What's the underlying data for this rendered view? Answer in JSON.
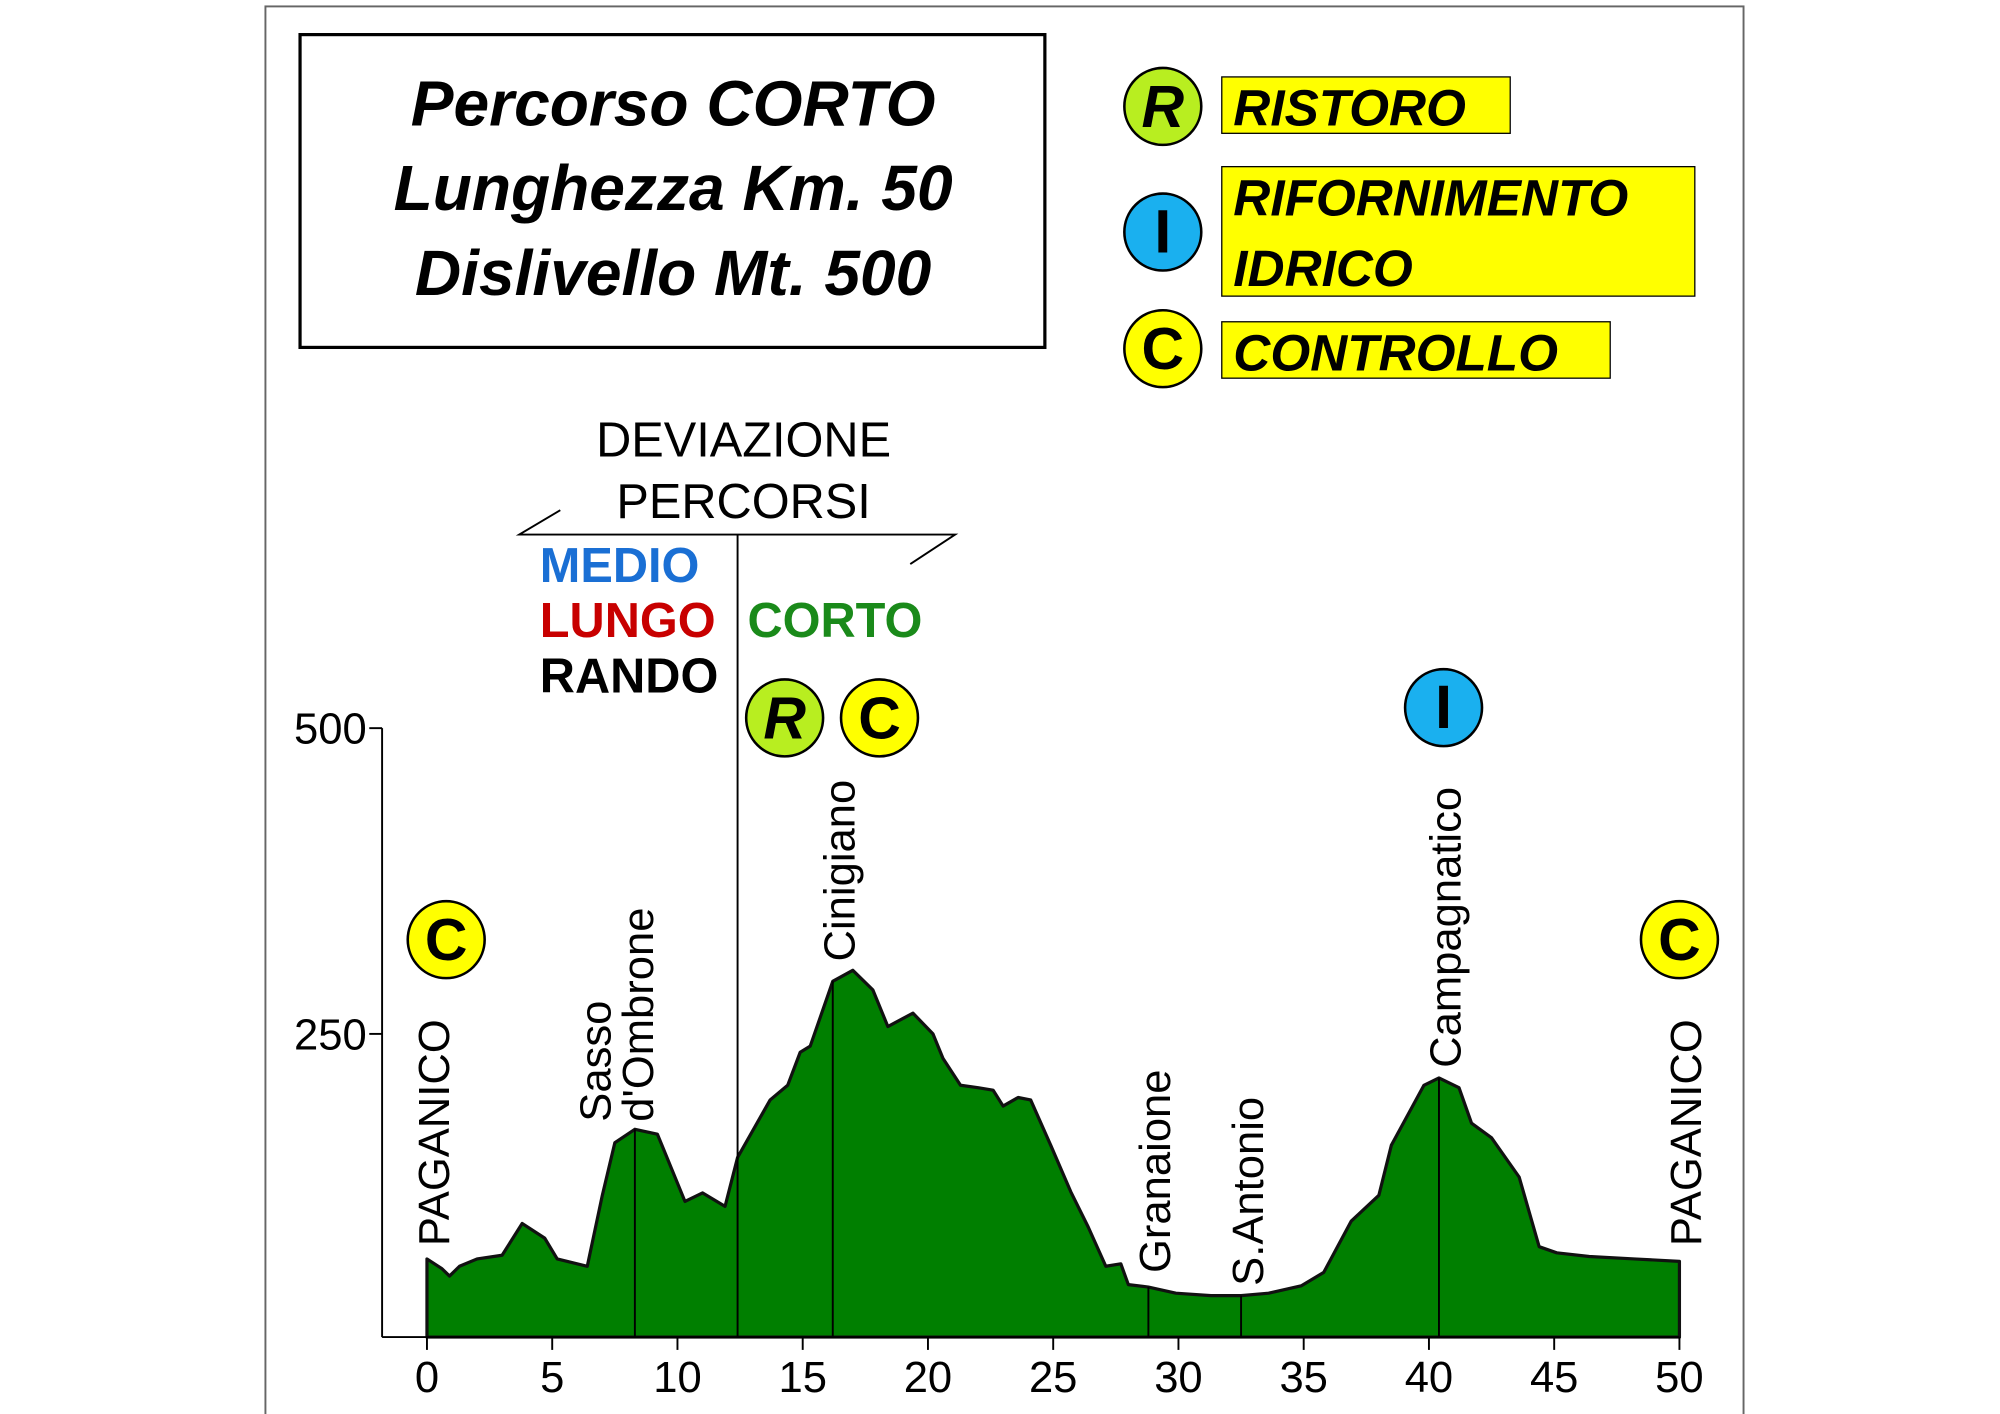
{
  "chart_data": {
    "type": "area",
    "title": [
      "Percorso CORTO",
      "Lunghezza Km. 50",
      "Dislivello Mt. 500"
    ],
    "color": "#007f00",
    "x": [
      0,
      0.6,
      0.9,
      1.3,
      2.0,
      3.0,
      3.8,
      4.7,
      5.2,
      6.4,
      7.0,
      7.5,
      8.3,
      9.2,
      10.3,
      11.0,
      11.9,
      12.4,
      13.7,
      14.4,
      14.9,
      15.3,
      16.2,
      17.0,
      17.8,
      18.4,
      19.4,
      20.2,
      20.6,
      21.3,
      22.0,
      22.6,
      23.0,
      23.6,
      24.1,
      24.9,
      25.7,
      26.4,
      27.1,
      27.7,
      28.0,
      28.8,
      29.9,
      31.3,
      32.5,
      33.6,
      34.9,
      35.8,
      36.9,
      38.0,
      38.5,
      39.8,
      40.4,
      41.2,
      41.7,
      42.5,
      43.6,
      44.4,
      45.1,
      46.4,
      48.2,
      50
    ],
    "values": [
      66,
      58,
      52,
      60,
      66,
      69,
      95,
      83,
      66,
      60,
      118,
      161,
      172,
      168,
      113,
      120,
      109,
      149,
      196,
      208,
      235,
      240,
      293,
      302,
      286,
      256,
      267,
      250,
      230,
      208,
      206,
      204,
      191,
      198,
      196,
      159,
      121,
      92,
      60,
      62,
      45,
      43,
      38,
      36,
      36,
      38,
      44,
      55,
      97,
      118,
      159,
      208,
      214,
      206,
      177,
      165,
      133,
      76,
      71,
      68,
      66,
      64
    ],
    "xlim": [
      0,
      50
    ],
    "ylim": [
      0,
      500
    ],
    "xticks": [
      0,
      5,
      10,
      15,
      20,
      25,
      30,
      35,
      40,
      45,
      50
    ],
    "yticks": [
      250,
      500
    ],
    "places": [
      {
        "label": [
          "PAGANICO"
        ],
        "x": 0
      },
      {
        "label": [
          "Sasso",
          "d'Ombrone"
        ],
        "x": 8.3
      },
      {
        "label": [
          "Cinigiano"
        ],
        "x": 16.2
      },
      {
        "label": [
          "Granaione"
        ],
        "x": 28.8
      },
      {
        "label": [
          "S.Antonio"
        ],
        "x": 32.5
      },
      {
        "label": [
          "Campagnatico"
        ],
        "x": 40.4
      },
      {
        "label": [
          "PAGANICO"
        ],
        "x": 50
      }
    ],
    "deviation": {
      "label": [
        "DEVIAZIONE",
        "PERCORSI"
      ],
      "x": 12.4,
      "left": [
        {
          "name": "MEDIO",
          "color": "#1a6fd4"
        },
        {
          "name": "LUNGO",
          "color": "#c80000"
        },
        {
          "name": "RANDO",
          "color": "#000000"
        }
      ],
      "right": [
        {
          "name": "CORTO",
          "color": "#1a8a1a"
        }
      ]
    },
    "legend": [
      {
        "symbol": "R",
        "label": [
          "RISTORO"
        ],
        "color": "#b8ee20"
      },
      {
        "symbol": "I",
        "label": [
          "RIFORNIMENTO",
          "IDRICO"
        ],
        "color": "#1ab0ef"
      },
      {
        "symbol": "C",
        "label": [
          "CONTROLLO"
        ],
        "color": "#ffff00"
      }
    ],
    "markers": [
      "C",
      "R",
      "C",
      "I",
      "C"
    ]
  }
}
